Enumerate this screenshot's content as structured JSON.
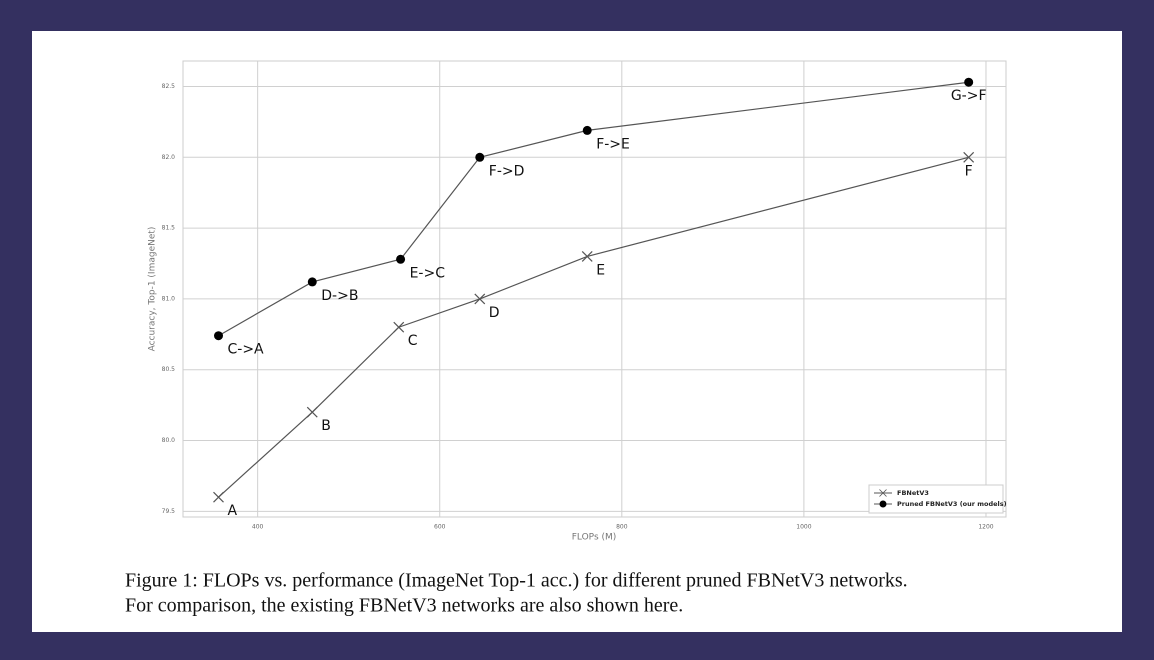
{
  "chart_data": {
    "type": "line",
    "x_label": "FLOPs (M)",
    "y_label": "Accuracy, Top-1 (ImageNet)",
    "xlim": [
      318,
      1222
    ],
    "ylim": [
      79.46,
      82.68
    ],
    "xticks": [
      400,
      600,
      800,
      1000,
      1200
    ],
    "yticks": [
      {
        "value": 79.5,
        "label": "79.5"
      },
      {
        "value": 80.0,
        "label": "80.0"
      },
      {
        "value": 80.5,
        "label": "80.5"
      },
      {
        "value": 81.0,
        "label": "81.0"
      },
      {
        "value": 81.5,
        "label": "81.5"
      },
      {
        "value": 82.0,
        "label": "82.0"
      },
      82.5
    ],
    "grid": true,
    "legend": "lower right",
    "series": [
      {
        "name": "FBNetV3",
        "color": "#555555",
        "marker": "x",
        "x": [
          357,
          460,
          555,
          644,
          762,
          1181
        ],
        "values": [
          79.6,
          80.2,
          80.8,
          81.0,
          81.3,
          82.0
        ],
        "point_labels": [
          "A",
          "B",
          "C",
          "D",
          "E",
          "F"
        ]
      },
      {
        "name": "Pruned FBNetV3 (our models)",
        "color": "#555555",
        "marker": "o",
        "x": [
          357,
          460,
          557,
          644,
          762,
          1181
        ],
        "values": [
          80.74,
          81.12,
          81.28,
          82.0,
          82.19,
          82.53
        ],
        "point_labels": [
          "C->A",
          "D->B",
          "E->C",
          "F->D",
          "F->E",
          "G->F"
        ]
      }
    ],
    "caption": [
      "Figure 1: FLOPs vs. performance (ImageNet Top-1 acc.) for different pruned FBNetV3 networks.",
      "For comparison, the existing FBNetV3 networks are also shown here."
    ]
  }
}
